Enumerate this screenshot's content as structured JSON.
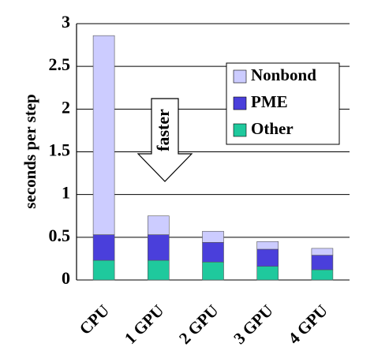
{
  "chart_data": {
    "type": "stacked_bar",
    "y_label": "seconds per step",
    "categories": [
      "CPU",
      "1 GPU",
      "2 GPU",
      "3 GPU",
      "4 GPU"
    ],
    "series": [
      {
        "name": "Other",
        "color": "#1fc99d",
        "values": [
          0.23,
          0.23,
          0.21,
          0.16,
          0.12
        ]
      },
      {
        "name": "PME",
        "color": "#4a3fdb",
        "values": [
          0.3,
          0.3,
          0.23,
          0.2,
          0.17
        ]
      },
      {
        "name": "Nonbond",
        "color": "#ccccff",
        "values": [
          2.33,
          0.22,
          0.13,
          0.09,
          0.08
        ]
      }
    ],
    "ylim": [
      0,
      3
    ],
    "yticks": [
      0,
      0.5,
      1,
      1.5,
      2,
      2.5,
      3
    ],
    "grid": true,
    "annotation": "faster"
  }
}
